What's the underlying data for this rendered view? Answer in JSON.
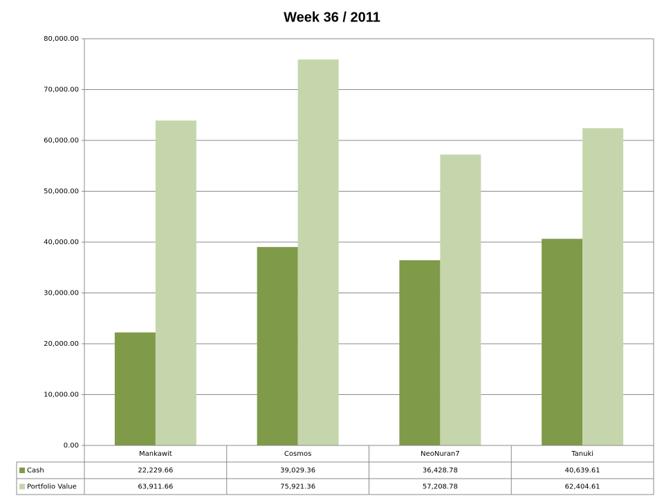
{
  "chart_data": {
    "type": "bar",
    "title": "Week 36 / 2011",
    "categories": [
      "Mankawit",
      "Cosmos",
      "NeoNuran7",
      "Tanuki"
    ],
    "series": [
      {
        "name": "Cash",
        "color": "#7f9a48",
        "values": [
          22229.66,
          39029.36,
          36428.78,
          40639.61
        ],
        "value_labels": [
          "22,229.66",
          "39,029.36",
          "36,428.78",
          "40,639.61"
        ]
      },
      {
        "name": "Portfolio Value",
        "color": "#c6d6ac",
        "values": [
          63911.66,
          75921.36,
          57208.78,
          62404.61
        ],
        "value_labels": [
          "63,911.66",
          "75,921.36",
          "57,208.78",
          "62,404.61"
        ]
      }
    ],
    "ylim": [
      0,
      80000
    ],
    "yticks": [
      {
        "value": 0,
        "label": "0.00"
      },
      {
        "value": 10000,
        "label": "10,000.00"
      },
      {
        "value": 20000,
        "label": "20,000.00"
      },
      {
        "value": 30000,
        "label": "30,000.00"
      },
      {
        "value": 40000,
        "label": "40,000.00"
      },
      {
        "value": 50000,
        "label": "50,000.00"
      },
      {
        "value": 60000,
        "label": "60,000.00"
      },
      {
        "value": 70000,
        "label": "70,000.00"
      },
      {
        "value": 80000,
        "label": "80,000.00"
      }
    ],
    "grid": true
  }
}
